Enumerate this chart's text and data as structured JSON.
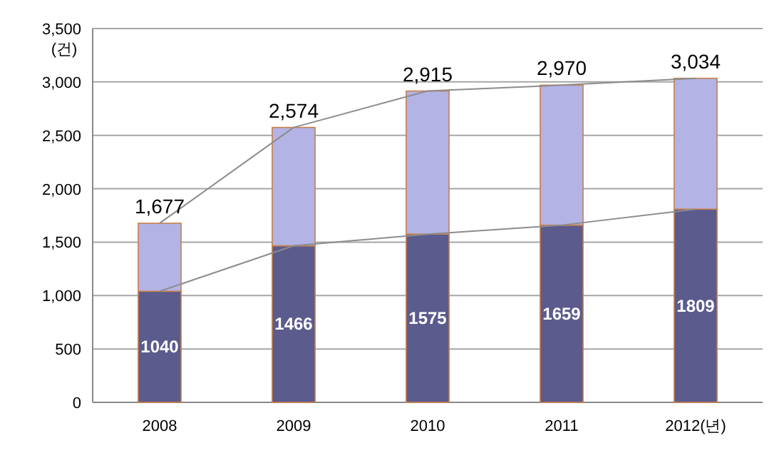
{
  "chart_data": {
    "type": "bar",
    "stacked": true,
    "categories": [
      "2008",
      "2009",
      "2010",
      "2011",
      "2012(년)"
    ],
    "ylabel": "(건)",
    "ylim": [
      0,
      3500
    ],
    "yticks": [
      0,
      500,
      {
        "value": 1000,
        "label": "1,000"
      },
      {
        "value": 1500,
        "label": "1,500"
      },
      {
        "value": 2000,
        "label": "2,000"
      },
      {
        "value": 2500,
        "label": "2,500"
      },
      {
        "value": 3000,
        "label": "3,000"
      },
      {
        "value": 3500,
        "label": "3,500"
      }
    ],
    "grid": "y",
    "totals": [
      "1,677",
      "2,574",
      "2,915",
      "2,970",
      "3,034"
    ],
    "series": [
      {
        "color": "#5b5b8e",
        "values": [
          1040,
          1466,
          1575,
          1659,
          1809
        ],
        "value_labels": [
          "1040",
          "1466",
          "1575",
          "1659",
          "1809"
        ]
      },
      {
        "color": "#b3b3e6",
        "values": [
          637,
          1108,
          1340,
          1311,
          1225
        ]
      },
      {
        "type": "line",
        "color": "#8c8c8c",
        "values": [
          1040,
          1466,
          1575,
          1659,
          1809
        ]
      },
      {
        "type": "line",
        "color": "#8c8c8c",
        "values": [
          1677,
          2574,
          2915,
          2970,
          3034
        ]
      }
    ]
  }
}
